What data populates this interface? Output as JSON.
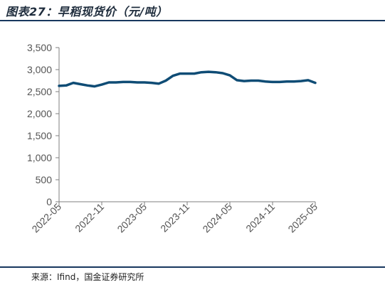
{
  "header": {
    "title": "图表27：早稻现货价（元/吨）"
  },
  "footer": {
    "source": "来源：Ifind，国金证券研究所"
  },
  "chart_data": {
    "type": "line",
    "ylim": [
      0,
      3500
    ],
    "yticks": [
      0,
      500,
      1000,
      1500,
      2000,
      2500,
      3000,
      3500
    ],
    "ytick_labels": [
      "0",
      "500",
      "1,000",
      "1,500",
      "2,000",
      "2,500",
      "3,000",
      "3,500"
    ],
    "xlim": [
      "2022-05",
      "2025-05"
    ],
    "xtick_labels": [
      "2022-05",
      "2022-11",
      "2023-05",
      "2023-11",
      "2024-05",
      "2024-11",
      "2025-05"
    ],
    "color": "#0f4c75",
    "series": [
      {
        "x": [
          "2022-05",
          "2022-06",
          "2022-07",
          "2022-08",
          "2022-09",
          "2022-10",
          "2022-11",
          "2022-12",
          "2023-01",
          "2023-02",
          "2023-03",
          "2023-04",
          "2023-05",
          "2023-06",
          "2023-07",
          "2023-08",
          "2023-09",
          "2023-10",
          "2023-11",
          "2023-12",
          "2024-01",
          "2024-02",
          "2024-03",
          "2024-04",
          "2024-05",
          "2024-06",
          "2024-07",
          "2024-08",
          "2024-09",
          "2024-10",
          "2024-11",
          "2024-12",
          "2025-01",
          "2025-02",
          "2025-03",
          "2025-04",
          "2025-05"
        ],
        "values": [
          2630,
          2640,
          2700,
          2670,
          2640,
          2620,
          2660,
          2710,
          2710,
          2720,
          2720,
          2710,
          2710,
          2700,
          2680,
          2750,
          2860,
          2910,
          2910,
          2910,
          2940,
          2950,
          2940,
          2920,
          2870,
          2760,
          2740,
          2750,
          2750,
          2730,
          2720,
          2720,
          2730,
          2730,
          2740,
          2760,
          2700
        ]
      }
    ]
  }
}
